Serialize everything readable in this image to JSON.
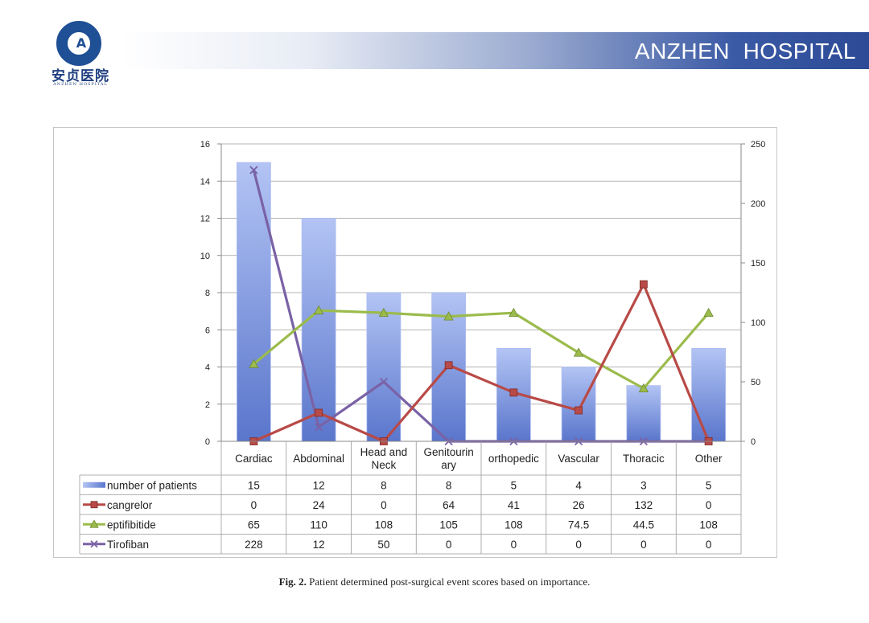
{
  "header": {
    "logo_cn": "安贞医院",
    "logo_en": "ANZHEN HOSPITAL",
    "logo_mark": "A",
    "banner_title": "ANZHEN  HOSPITAL"
  },
  "caption": {
    "label": "Fig. 2.",
    "text": " Patient determined post-surgical event scores based on importance."
  },
  "chart_data": {
    "type": "bar",
    "categories": [
      "Cardiac",
      "Abdominal",
      "Head and Neck",
      "Genitourinary",
      "orthopedic",
      "Vascular",
      "Thoracic",
      "Other"
    ],
    "category_label_lines": [
      [
        "Cardiac"
      ],
      [
        "Abdominal"
      ],
      [
        "Head and",
        "Neck"
      ],
      [
        "Genitourin",
        "ary"
      ],
      [
        "orthopedic"
      ],
      [
        "Vascular"
      ],
      [
        "Thoracic"
      ],
      [
        "Other"
      ]
    ],
    "y_left": {
      "min": 0,
      "max": 16,
      "ticks": [
        "0",
        "2",
        "4",
        "6",
        "8",
        "10",
        "12",
        "14",
        "16"
      ]
    },
    "y_right": {
      "min": 0,
      "max": 250,
      "ticks": [
        "0",
        "50",
        "100",
        "150",
        "200",
        "250"
      ]
    },
    "grid": true,
    "legend": "data-table",
    "series": [
      {
        "name": "number of patients",
        "kind": "bar",
        "axis": "left",
        "marker": "none",
        "color": "#7f97db",
        "values": [
          15,
          12,
          8,
          8,
          5,
          4,
          3,
          5
        ],
        "labels": [
          "15",
          "12",
          "8",
          "8",
          "5",
          "4",
          "3",
          "5"
        ]
      },
      {
        "name": "cangrelor",
        "kind": "line",
        "axis": "right",
        "marker": "square",
        "color": "#b84a47",
        "values": [
          0,
          24,
          0,
          64,
          41,
          26,
          132,
          0
        ],
        "labels": [
          "0",
          "24",
          "0",
          "64",
          "41",
          "26",
          "132",
          "0"
        ]
      },
      {
        "name": "eptifibitide",
        "kind": "line",
        "axis": "right",
        "marker": "triangle",
        "color": "#9bbb4c",
        "values": [
          65,
          110,
          108,
          105,
          108,
          74.5,
          44.5,
          108
        ],
        "labels": [
          "65",
          "110",
          "108",
          "105",
          "108",
          "74.5",
          "44.5",
          "108"
        ]
      },
      {
        "name": "Tirofiban",
        "kind": "line",
        "axis": "right",
        "marker": "x",
        "color": "#7a62a6",
        "values": [
          228,
          12,
          50,
          0,
          0,
          0,
          0,
          0
        ],
        "labels": [
          "228",
          "12",
          "50",
          "0",
          "0",
          "0",
          "0",
          "0"
        ]
      }
    ]
  }
}
